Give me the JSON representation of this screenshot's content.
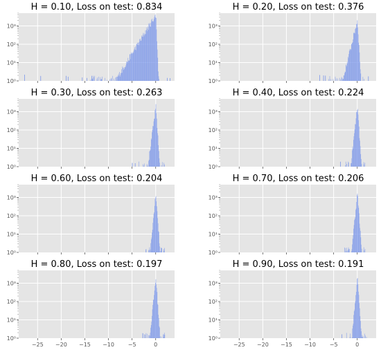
{
  "figure": {
    "colors": {
      "plot_bg": "#e5e5e5",
      "grid": "#ffffff",
      "bar": "#7b96ea",
      "text": "#555555"
    }
  },
  "chart_data": [
    {
      "type": "bar",
      "title": "H = 0.10, Loss on test: 0.834",
      "xlim": [
        -29,
        4
      ],
      "yscale": "log",
      "ylim": [
        1,
        5000
      ],
      "xticks": [
        -25,
        -20,
        -15,
        -10,
        -5,
        0
      ],
      "xtick_labels": [
        "",
        "",
        "",
        "",
        "",
        ""
      ],
      "yticks": [
        1,
        10,
        100,
        1000
      ],
      "ytick_labels": [
        "10⁰",
        "10¹",
        "10²",
        "10³"
      ],
      "grid": true,
      "distribution": {
        "peak_x": 0,
        "peak_count": 4000,
        "left_extent": -14,
        "right_extent": 1.2,
        "left_decay": 0.42,
        "right_decay": 6.0,
        "outliers_x": [
          -27.8,
          -24.4,
          -19.0,
          -18.6,
          -15.6,
          -14.6,
          -13.6,
          2.4,
          3.0
        ]
      }
    },
    {
      "type": "bar",
      "title": "H = 0.20, Loss on test: 0.376",
      "xlim": [
        -29,
        4
      ],
      "yscale": "log",
      "ylim": [
        1,
        5000
      ],
      "xticks": [
        -25,
        -20,
        -15,
        -10,
        -5,
        0
      ],
      "xtick_labels": [
        "",
        "",
        "",
        "",
        "",
        ""
      ],
      "yticks": [
        1,
        10,
        100,
        1000
      ],
      "ytick_labels": [
        "10⁰",
        "10¹",
        "10²",
        "10³"
      ],
      "grid": true,
      "distribution": {
        "peak_x": 0,
        "peak_count": 2000,
        "left_extent": -6.5,
        "right_extent": 1.6,
        "left_decay": 1.05,
        "right_decay": 4.2,
        "outliers_x": [
          -8.0,
          -7.2,
          -6.8,
          2.3
        ]
      }
    },
    {
      "type": "bar",
      "title": "H = 0.30, Loss on test: 0.263",
      "xlim": [
        -29,
        4
      ],
      "yscale": "log",
      "ylim": [
        1,
        5000
      ],
      "xticks": [
        -25,
        -20,
        -15,
        -10,
        -5,
        0
      ],
      "xtick_labels": [
        "",
        "",
        "",
        "",
        "",
        ""
      ],
      "yticks": [
        1,
        10,
        100,
        1000
      ],
      "ytick_labels": [
        "10⁰",
        "10¹",
        "10²",
        "10³"
      ],
      "grid": true,
      "distribution": {
        "peak_x": 0,
        "peak_count": 1800,
        "left_extent": -3.6,
        "right_extent": 1.8,
        "left_decay": 1.9,
        "right_decay": 3.8,
        "outliers_x": [
          -5.0,
          -4.4
        ]
      }
    },
    {
      "type": "bar",
      "title": "H = 0.40, Loss on test: 0.224",
      "xlim": [
        -29,
        4
      ],
      "yscale": "log",
      "ylim": [
        1,
        5000
      ],
      "xticks": [
        -25,
        -20,
        -15,
        -10,
        -5,
        0
      ],
      "xtick_labels": [
        "",
        "",
        "",
        "",
        "",
        ""
      ],
      "yticks": [
        1,
        10,
        100,
        1000
      ],
      "ytick_labels": [
        "10⁰",
        "10¹",
        "10²",
        "10³"
      ],
      "grid": true,
      "distribution": {
        "peak_x": 0,
        "peak_count": 2000,
        "left_extent": -3.0,
        "right_extent": 1.8,
        "left_decay": 2.3,
        "right_decay": 3.8,
        "outliers_x": [
          -3.6
        ]
      }
    },
    {
      "type": "bar",
      "title": "H = 0.60, Loss on test: 0.204",
      "xlim": [
        -29,
        4
      ],
      "yscale": "log",
      "ylim": [
        1,
        5000
      ],
      "xticks": [
        -25,
        -20,
        -15,
        -10,
        -5,
        0
      ],
      "xtick_labels": [
        "",
        "",
        "",
        "",
        "",
        ""
      ],
      "yticks": [
        1,
        10,
        100,
        1000
      ],
      "ytick_labels": [
        "10⁰",
        "10¹",
        "10²",
        "10³"
      ],
      "grid": true,
      "distribution": {
        "peak_x": 0,
        "peak_count": 1800,
        "left_extent": -2.6,
        "right_extent": 1.9,
        "left_decay": 2.6,
        "right_decay": 3.6,
        "outliers_x": []
      }
    },
    {
      "type": "bar",
      "title": "H = 0.70, Loss on test: 0.206",
      "xlim": [
        -29,
        4
      ],
      "yscale": "log",
      "ylim": [
        1,
        5000
      ],
      "xticks": [
        -25,
        -20,
        -15,
        -10,
        -5,
        0
      ],
      "xtick_labels": [
        "",
        "",
        "",
        "",
        "",
        ""
      ],
      "yticks": [
        1,
        10,
        100,
        1000
      ],
      "ytick_labels": [
        "10⁰",
        "10¹",
        "10²",
        "10³"
      ],
      "grid": true,
      "distribution": {
        "peak_x": 0,
        "peak_count": 1800,
        "left_extent": -2.8,
        "right_extent": 1.9,
        "left_decay": 2.5,
        "right_decay": 3.6,
        "outliers_x": []
      }
    },
    {
      "type": "bar",
      "title": "H = 0.80, Loss on test: 0.197",
      "xlim": [
        -29,
        4
      ],
      "yscale": "log",
      "ylim": [
        1,
        5000
      ],
      "xticks": [
        -25,
        -20,
        -15,
        -10,
        -5,
        0
      ],
      "xtick_labels": [
        "−25",
        "−20",
        "−15",
        "−10",
        "−5",
        "0"
      ],
      "yticks": [
        1,
        10,
        100,
        1000
      ],
      "ytick_labels": [
        "10⁰",
        "10¹",
        "10²",
        "10³"
      ],
      "grid": true,
      "distribution": {
        "peak_x": 0,
        "peak_count": 2000,
        "left_extent": -2.8,
        "right_extent": 2.0,
        "left_decay": 2.5,
        "right_decay": 3.6,
        "outliers_x": []
      }
    },
    {
      "type": "bar",
      "title": "H = 0.90, Loss on test: 0.191",
      "xlim": [
        -29,
        4
      ],
      "yscale": "log",
      "ylim": [
        1,
        5000
      ],
      "xticks": [
        -25,
        -20,
        -15,
        -10,
        -5,
        0
      ],
      "xtick_labels": [
        "−25",
        "−20",
        "−15",
        "−10",
        "−5",
        "0"
      ],
      "yticks": [
        1,
        10,
        100,
        1000
      ],
      "ytick_labels": [
        "10⁰",
        "10¹",
        "10²",
        "10³"
      ],
      "grid": true,
      "distribution": {
        "peak_x": 0,
        "peak_count": 2000,
        "left_extent": -2.5,
        "right_extent": 2.0,
        "left_decay": 2.7,
        "right_decay": 3.6,
        "outliers_x": [
          -3.3
        ]
      }
    }
  ]
}
